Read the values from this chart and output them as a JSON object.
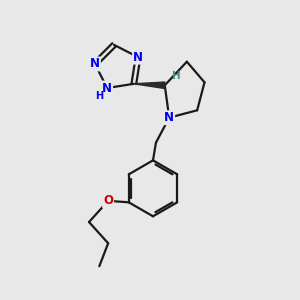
{
  "background_color": "#e8e8e8",
  "bond_color": "#1a1a1a",
  "nitrogen_color": "#0000ee",
  "oxygen_color": "#cc0000",
  "stereo_color": "#4a8a8a",
  "bond_width": 1.6,
  "figsize": [
    3.0,
    3.0
  ],
  "dpi": 100,
  "xlim": [
    0,
    10
  ],
  "ylim": [
    0,
    10
  ]
}
